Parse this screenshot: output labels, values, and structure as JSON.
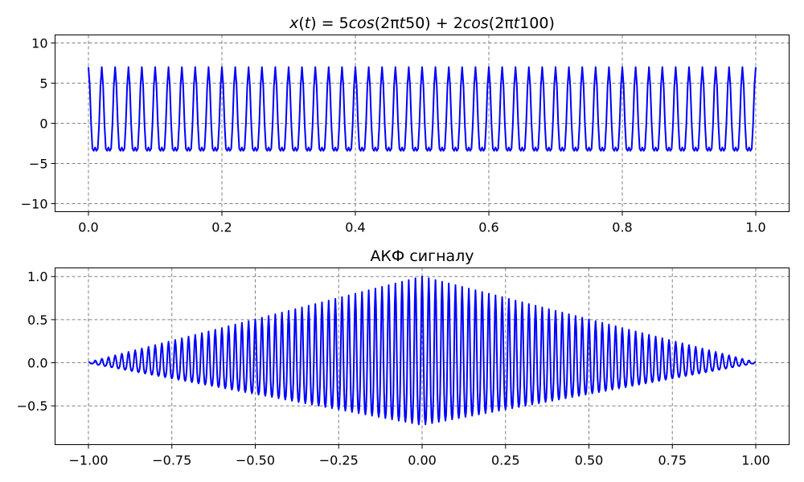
{
  "chart_data": [
    {
      "type": "line",
      "title": "x(t) = 5cos(2πt50) + 2cos(2πt100)",
      "title_parts": {
        "x": "x",
        "t1": "t",
        "main1": ") = 5",
        "cos1": "cos",
        "mid1": "(2π",
        "t2": "t",
        "end1": "50) + 2",
        "cos2": "cos",
        "mid2": "(2π",
        "t3": "t",
        "end2": "100)"
      },
      "xlabel": "",
      "ylabel": "",
      "xlim": [
        -0.05,
        1.05
      ],
      "ylim": [
        -11,
        11
      ],
      "x_ticks": [
        0.0,
        0.2,
        0.4,
        0.6,
        0.8,
        1.0
      ],
      "x_tick_labels": [
        "0.0",
        "0.2",
        "0.4",
        "0.6",
        "0.8",
        "1.0"
      ],
      "y_ticks": [
        10,
        5,
        0,
        -5,
        -10
      ],
      "y_tick_labels": [
        "10",
        "5",
        "0",
        "−5",
        "−10"
      ],
      "grid": true,
      "series": [
        {
          "color": "#0000ff",
          "formula": "5*cos(2*pi*50*t) + 2*cos(2*pi*100*t)",
          "t_range": [
            0,
            1
          ],
          "samples": 501
        }
      ]
    },
    {
      "type": "line",
      "title": "АКФ сигналу",
      "xlabel": "",
      "ylabel": "",
      "xlim": [
        -1.1,
        1.1
      ],
      "ylim": [
        -0.95,
        1.1
      ],
      "x_ticks": [
        -1.0,
        -0.75,
        -0.5,
        -0.25,
        0.0,
        0.25,
        0.5,
        0.75,
        1.0
      ],
      "x_tick_labels": [
        "−1.00",
        "−0.75",
        "−0.50",
        "−0.25",
        "0.00",
        "0.25",
        "0.50",
        "0.75",
        "1.00"
      ],
      "y_ticks": [
        1.0,
        0.5,
        0.0,
        -0.5
      ],
      "y_tick_labels": [
        "1.0",
        "0.5",
        "0.0",
        "−0.5"
      ],
      "grid": true,
      "series": [
        {
          "color": "#0000ff",
          "description": "normalized autocorrelation of the signal above, peak 1.0 at lag 0",
          "lag_range": [
            -1,
            1
          ],
          "samples": 1001
        }
      ]
    }
  ]
}
